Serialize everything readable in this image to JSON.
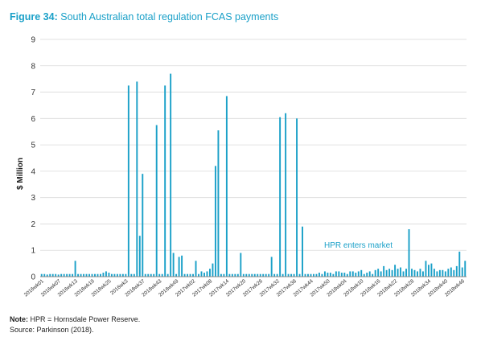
{
  "figure": {
    "label": "Figure 34:",
    "title": "South Australian total regulation FCAS payments"
  },
  "note": {
    "label": "Note:",
    "text": " HPR = Hornsdale Power Reserve."
  },
  "source": "Source: Parkinson (2018).",
  "colors": {
    "bar": "#1aa0c8",
    "accent": "#1aa0c8",
    "grid": "#d9d9d9",
    "axis": "#888888"
  },
  "chart_data": {
    "type": "bar",
    "ylabel": "$ Million",
    "xlabel": "",
    "ylim": [
      0,
      9
    ],
    "yticks": [
      0,
      1,
      2,
      3,
      4,
      5,
      6,
      7,
      8,
      9
    ],
    "grid": "horizontal",
    "annotation": {
      "text": "HPR enters market",
      "near_week": 98
    },
    "tick_labels": [
      {
        "week": 0,
        "text": "2016wk01"
      },
      {
        "week": 6,
        "text": "2016wk07"
      },
      {
        "week": 12,
        "text": "2016wk13"
      },
      {
        "week": 18,
        "text": "2016wk19"
      },
      {
        "week": 24,
        "text": "2016wk25"
      },
      {
        "week": 30,
        "text": "2016wk3"
      },
      {
        "week": 36,
        "text": "2016wk37"
      },
      {
        "week": 42,
        "text": "2016wk43"
      },
      {
        "week": 48,
        "text": "2016wk49"
      },
      {
        "week": 54,
        "text": "2017wk02"
      },
      {
        "week": 60,
        "text": "2017wk08"
      },
      {
        "week": 66,
        "text": "2017wk14"
      },
      {
        "week": 72,
        "text": "2017wk20"
      },
      {
        "week": 78,
        "text": "2017wk26"
      },
      {
        "week": 84,
        "text": "2017wk32"
      },
      {
        "week": 90,
        "text": "2017wk38"
      },
      {
        "week": 96,
        "text": "2017wk44"
      },
      {
        "week": 102,
        "text": "2017wk50"
      },
      {
        "week": 108,
        "text": "2018wk04"
      },
      {
        "week": 114,
        "text": "2018wk10"
      },
      {
        "week": 120,
        "text": "2018wk16"
      },
      {
        "week": 126,
        "text": "2018wk22"
      },
      {
        "week": 132,
        "text": "2018wk28"
      },
      {
        "week": 138,
        "text": "2018wk34"
      },
      {
        "week": 144,
        "text": "2018wk40"
      },
      {
        "week": 150,
        "text": "2018wk46"
      }
    ],
    "values": [
      0.1,
      0.1,
      0.08,
      0.1,
      0.1,
      0.1,
      0.08,
      0.1,
      0.1,
      0.1,
      0.1,
      0.1,
      0.6,
      0.1,
      0.1,
      0.1,
      0.1,
      0.1,
      0.1,
      0.1,
      0.1,
      0.1,
      0.15,
      0.2,
      0.15,
      0.1,
      0.1,
      0.1,
      0.1,
      0.1,
      0.1,
      7.25,
      0.1,
      0.1,
      7.4,
      1.55,
      3.9,
      0.1,
      0.1,
      0.1,
      0.1,
      5.75,
      0.1,
      0.1,
      7.25,
      0.1,
      7.7,
      0.9,
      0.1,
      0.75,
      0.8,
      0.1,
      0.1,
      0.1,
      0.1,
      0.6,
      0.1,
      0.2,
      0.15,
      0.2,
      0.3,
      0.5,
      4.2,
      5.55,
      0.1,
      0.1,
      6.85,
      0.1,
      0.1,
      0.1,
      0.1,
      0.9,
      0.1,
      0.1,
      0.1,
      0.1,
      0.1,
      0.1,
      0.1,
      0.1,
      0.1,
      0.1,
      0.75,
      0.1,
      0.1,
      6.05,
      0.1,
      6.2,
      0.1,
      0.1,
      0.1,
      6.0,
      0.1,
      1.9,
      0.1,
      0.1,
      0.1,
      0.1,
      0.1,
      0.15,
      0.1,
      0.2,
      0.15,
      0.15,
      0.1,
      0.2,
      0.2,
      0.15,
      0.15,
      0.1,
      0.2,
      0.2,
      0.15,
      0.2,
      0.25,
      0.1,
      0.15,
      0.2,
      0.1,
      0.25,
      0.3,
      0.2,
      0.4,
      0.25,
      0.3,
      0.25,
      0.45,
      0.3,
      0.35,
      0.2,
      0.3,
      1.8,
      0.3,
      0.25,
      0.2,
      0.3,
      0.2,
      0.6,
      0.45,
      0.5,
      0.3,
      0.2,
      0.25,
      0.25,
      0.2,
      0.3,
      0.35,
      0.25,
      0.4,
      0.95,
      0.35,
      0.6
    ]
  }
}
